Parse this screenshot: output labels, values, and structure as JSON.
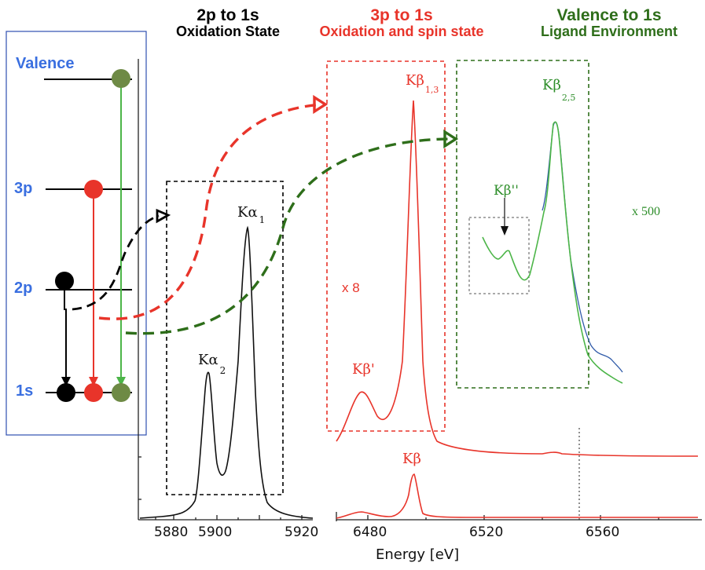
{
  "headers": {
    "h1": {
      "title": "2p to 1s",
      "subtitle": "Oxidation State",
      "color": "#000000"
    },
    "h2": {
      "title": "3p to 1s",
      "subtitle": "Oxidation and spin state",
      "color": "#e8342a"
    },
    "h3": {
      "title": "Valence to 1s",
      "subtitle": "Ligand Environment",
      "color": "#2e6e1a"
    }
  },
  "levels": {
    "valence": "Valence",
    "p3": "3p",
    "p2": "2p",
    "s1": "1s"
  },
  "peaks": {
    "ka1_main": "Kα",
    "ka1_sub": "1",
    "ka2_main": "Kα",
    "ka2_sub": "2",
    "kb13_main": "Kβ",
    "kb13_sub": "1,3",
    "kb25_main": "Kβ",
    "kb25_sub": "2,5",
    "kb_prime": "Kβ'",
    "kb_double_prime": "Kβ''",
    "kb_lower": "Kβ"
  },
  "annotations": {
    "x8": "x 8",
    "x500": "x 500"
  },
  "axis": {
    "xlabel": "Energy [eV]",
    "ticks_left": [
      "5880",
      "5900",
      "5920"
    ],
    "ticks_right": [
      "6480",
      "6520",
      "6560"
    ]
  },
  "colors": {
    "black": "#000000",
    "red": "#e8342a",
    "green": "#2e6e1a",
    "light_green": "#4cb548",
    "olive": "#6e8a45",
    "blue": "#2f5aa8",
    "level_text": "#3a6fe0"
  }
}
